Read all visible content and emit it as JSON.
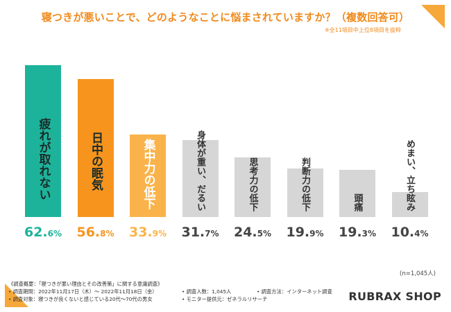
{
  "colors": {
    "accent_orange": "#f08a1c",
    "bar_teal": "#1db39a",
    "bar_orange": "#f7941d",
    "bar_light_orange": "#fab34a",
    "bar_gray": "#d6d6d6",
    "text_dark": "#333333"
  },
  "header": {
    "title": "寝つきが悪いことで、どのようなことに悩まされていますか？（複数回答可）",
    "note": "※全11項目中上位8項目を抜粋"
  },
  "chart_data": {
    "type": "bar",
    "title": "寝つきが悪いことで、どのようなことに悩まされていますか？（複数回答可）",
    "xlabel": "",
    "ylabel": "",
    "unit": "%",
    "ylim": [
      0,
      65
    ],
    "grid": false,
    "categories": [
      "疲れが取れない",
      "日中の眠気",
      "集中力の低下",
      "身体が重い、だるい",
      "思考力の低下",
      "判断力の低下",
      "頭痛",
      "めまい、立ち眩み"
    ],
    "values": [
      62.6,
      56.8,
      33.9,
      31.7,
      24.5,
      19.9,
      19.3,
      10.4
    ],
    "value_labels_int": [
      "62.",
      "56.",
      "33.",
      "31.",
      "24.",
      "19.",
      "19.",
      "10."
    ],
    "value_labels_dec": [
      "6%",
      "8%",
      "9%",
      "7%",
      "5%",
      "9%",
      "3%",
      "4%"
    ],
    "bar_colors": [
      "#1db39a",
      "#f7941d",
      "#fab34a",
      "#d6d6d6",
      "#d6d6d6",
      "#d6d6d6",
      "#d6d6d6",
      "#d6d6d6"
    ],
    "label_colors": [
      "#1a2b2a",
      "#1a2b2a",
      "#ffffff",
      "#333333",
      "#333333",
      "#333333",
      "#333333",
      "#333333"
    ],
    "value_colors": [
      "#1db39a",
      "#f7941d",
      "#fab34a",
      "#444444",
      "#444444",
      "#444444",
      "#444444",
      "#444444"
    ]
  },
  "sample": "(n=1,045人)",
  "footer": {
    "overview": "《調査概要：「寝つきが悪い理由とその改善策」に関する意識調査》",
    "period": "• 調査期間：2022年11月17日（木）～ 2022年11月18日（金）",
    "target": "• 調査対象：寝つきが良くないと感じている20代～70代の男女",
    "count": "• 調査人数：1,045人",
    "method": "• 調査方法：インターネット調査",
    "provider": "• モニター提供元：ゼネラルリサーチ"
  },
  "brand": "RUBRAX SHOP"
}
